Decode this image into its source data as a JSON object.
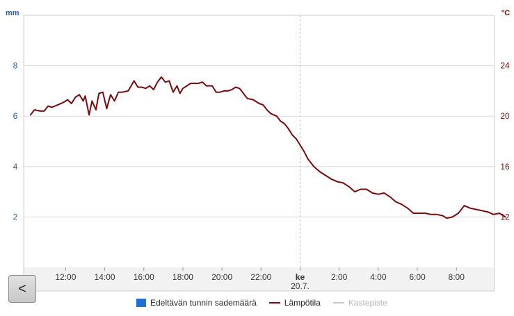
{
  "nav": {
    "back_label": "<"
  },
  "colors": {
    "background": "#ffffff",
    "plot_border": "#cfcfcf",
    "grid": "#d9d9d9",
    "left_axis": "#2e5aa8",
    "right_axis": "#7a0a0a",
    "temperature": "#7a0a0a",
    "precipitation": "#1f6fd6",
    "dewpoint": "#c8c8c8",
    "date_separator": "#bdbdbd",
    "xaxis_band": "#f2f2f2"
  },
  "chart_data": {
    "type": "line",
    "x_ticks": [
      {
        "label": "12:00",
        "h": 12
      },
      {
        "label": "14:00",
        "h": 14
      },
      {
        "label": "16:00",
        "h": 16
      },
      {
        "label": "18:00",
        "h": 18
      },
      {
        "label": "20:00",
        "h": 20
      },
      {
        "label": "22:00",
        "h": 22
      },
      {
        "label": "ke",
        "sub": "20.7.",
        "h": 24
      },
      {
        "label": "2:00",
        "h": 26
      },
      {
        "label": "4:00",
        "h": 28
      },
      {
        "label": "6:00",
        "h": 30
      },
      {
        "label": "8:00",
        "h": 32
      }
    ],
    "x_range_hours": [
      9.85,
      33.95
    ],
    "left_axis": {
      "unit": "mm",
      "ticks": [
        2,
        4,
        6,
        8
      ],
      "range": [
        0,
        10
      ]
    },
    "right_axis": {
      "unit": "°C",
      "ticks": [
        12,
        16,
        20,
        24
      ],
      "range": [
        8,
        28
      ]
    },
    "grid": true,
    "legend_position": "bottom-center",
    "legend": [
      {
        "label": "Edeltävän tunnin sademäärä",
        "kind": "box",
        "color": "#1f6fd6",
        "active": true
      },
      {
        "label": "Lämpötila",
        "kind": "line",
        "color": "#7a0a0a",
        "active": true
      },
      {
        "label": "Kastepiste",
        "kind": "line",
        "color": "#c8c8c8",
        "active": false
      }
    ],
    "series": [
      {
        "name": "Lämpötila",
        "axis": "right",
        "points": [
          [
            10.2,
            20.1
          ],
          [
            10.4,
            20.5
          ],
          [
            10.7,
            20.4
          ],
          [
            10.9,
            20.4
          ],
          [
            11.1,
            20.8
          ],
          [
            11.3,
            20.7
          ],
          [
            11.6,
            20.9
          ],
          [
            11.9,
            21.1
          ],
          [
            12.1,
            21.3
          ],
          [
            12.3,
            21.0
          ],
          [
            12.5,
            21.5
          ],
          [
            12.7,
            21.7
          ],
          [
            12.9,
            21.2
          ],
          [
            13.0,
            21.6
          ],
          [
            13.2,
            20.1
          ],
          [
            13.35,
            21.2
          ],
          [
            13.55,
            20.5
          ],
          [
            13.7,
            21.8
          ],
          [
            13.9,
            21.9
          ],
          [
            14.1,
            20.6
          ],
          [
            14.3,
            21.7
          ],
          [
            14.5,
            21.2
          ],
          [
            14.7,
            21.9
          ],
          [
            14.9,
            21.9
          ],
          [
            15.2,
            22.0
          ],
          [
            15.5,
            22.8
          ],
          [
            15.7,
            22.3
          ],
          [
            15.9,
            22.3
          ],
          [
            16.1,
            22.2
          ],
          [
            16.3,
            22.4
          ],
          [
            16.5,
            22.1
          ],
          [
            16.7,
            22.7
          ],
          [
            16.9,
            23.1
          ],
          [
            17.1,
            22.7
          ],
          [
            17.3,
            22.8
          ],
          [
            17.5,
            21.9
          ],
          [
            17.7,
            22.4
          ],
          [
            17.85,
            21.8
          ],
          [
            18.0,
            22.2
          ],
          [
            18.2,
            22.4
          ],
          [
            18.4,
            22.6
          ],
          [
            18.6,
            22.6
          ],
          [
            18.8,
            22.6
          ],
          [
            19.0,
            22.7
          ],
          [
            19.2,
            22.4
          ],
          [
            19.5,
            22.4
          ],
          [
            19.7,
            21.9
          ],
          [
            19.9,
            21.9
          ],
          [
            20.1,
            22.0
          ],
          [
            20.3,
            22.0
          ],
          [
            20.5,
            22.1
          ],
          [
            20.7,
            22.3
          ],
          [
            20.9,
            22.2
          ],
          [
            21.1,
            21.8
          ],
          [
            21.3,
            21.4
          ],
          [
            21.6,
            21.3
          ],
          [
            21.9,
            21.0
          ],
          [
            22.1,
            20.9
          ],
          [
            22.3,
            20.5
          ],
          [
            22.5,
            20.2
          ],
          [
            22.8,
            20.0
          ],
          [
            23.0,
            19.6
          ],
          [
            23.2,
            19.4
          ],
          [
            23.4,
            19.0
          ],
          [
            23.6,
            18.5
          ],
          [
            23.8,
            18.2
          ],
          [
            24.0,
            17.7
          ],
          [
            24.2,
            17.2
          ],
          [
            24.4,
            16.6
          ],
          [
            24.7,
            16.0
          ],
          [
            25.0,
            15.6
          ],
          [
            25.3,
            15.3
          ],
          [
            25.6,
            15.0
          ],
          [
            25.9,
            14.8
          ],
          [
            26.2,
            14.7
          ],
          [
            26.5,
            14.4
          ],
          [
            26.8,
            14.0
          ],
          [
            27.1,
            14.2
          ],
          [
            27.4,
            14.2
          ],
          [
            27.7,
            13.9
          ],
          [
            28.0,
            13.8
          ],
          [
            28.3,
            13.9
          ],
          [
            28.6,
            13.6
          ],
          [
            28.9,
            13.2
          ],
          [
            29.2,
            13.0
          ],
          [
            29.5,
            12.7
          ],
          [
            29.8,
            12.3
          ],
          [
            30.1,
            12.3
          ],
          [
            30.4,
            12.3
          ],
          [
            30.7,
            12.2
          ],
          [
            31.0,
            12.2
          ],
          [
            31.3,
            12.1
          ],
          [
            31.5,
            11.9
          ],
          [
            31.8,
            12.0
          ],
          [
            32.1,
            12.3
          ],
          [
            32.4,
            12.9
          ],
          [
            32.7,
            12.7
          ],
          [
            33.0,
            12.6
          ],
          [
            33.3,
            12.5
          ],
          [
            33.6,
            12.4
          ],
          [
            33.9,
            12.2
          ],
          [
            34.2,
            12.3
          ],
          [
            34.5,
            12.0
          ]
        ]
      }
    ]
  }
}
